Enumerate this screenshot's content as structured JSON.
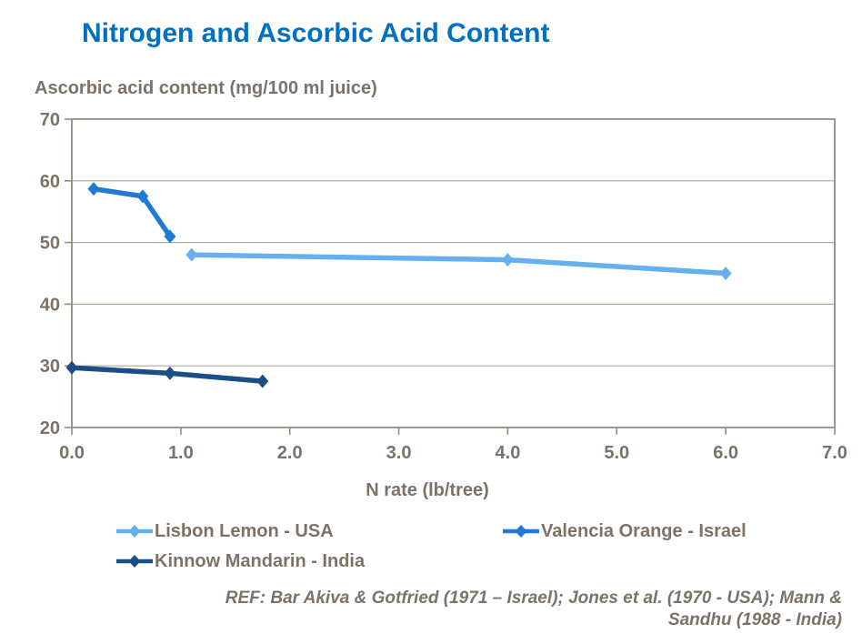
{
  "title": {
    "text": "Nitrogen and Ascorbic Acid Content",
    "color": "#0070C0"
  },
  "chart_data": {
    "type": "line",
    "title": "Nitrogen and Ascorbic Acid Content",
    "y_axis_title": "Ascorbic acid content (mg/100 ml juice)",
    "x_axis_title": "N rate (lb/tree)",
    "xlim": [
      0.0,
      7.0
    ],
    "ylim": [
      20,
      70
    ],
    "x_ticks": [
      "0.0",
      "1.0",
      "2.0",
      "3.0",
      "4.0",
      "5.0",
      "6.0",
      "7.0"
    ],
    "y_ticks": [
      "20",
      "30",
      "40",
      "50",
      "60",
      "70"
    ],
    "grid": "horizontal-major-only",
    "legend_position": "bottom",
    "text_color": "#7D7265",
    "axis_color": "#958D7E",
    "gridline_color": "#AFA89B",
    "series": [
      {
        "name": "Lisbon Lemon - USA",
        "color": "#66B0F0",
        "points": [
          [
            1.1,
            48.0
          ],
          [
            4.0,
            47.2
          ],
          [
            6.0,
            45.0
          ]
        ]
      },
      {
        "name": "Valencia Orange - Israel",
        "color": "#1E7AD4",
        "points": [
          [
            0.2,
            58.7
          ],
          [
            0.65,
            57.5
          ],
          [
            0.9,
            51.0
          ]
        ]
      },
      {
        "name": "Kinnow Mandarin - India",
        "color": "#1A4E85",
        "points": [
          [
            0.0,
            29.7
          ],
          [
            0.9,
            28.8
          ],
          [
            1.75,
            27.5
          ]
        ]
      }
    ]
  },
  "legend": {
    "items": [
      {
        "label": "Lisbon Lemon - USA",
        "series_index": 0
      },
      {
        "label": "Valencia Orange - Israel",
        "series_index": 1
      },
      {
        "label": "Kinnow Mandarin - India",
        "series_index": 2
      }
    ]
  },
  "reference": {
    "lines": [
      "REF: Bar Akiva & Gotfried (1971 – Israel); Jones et al. (1970 - USA); Mann &",
      "Sandhu (1988 - India)"
    ]
  }
}
